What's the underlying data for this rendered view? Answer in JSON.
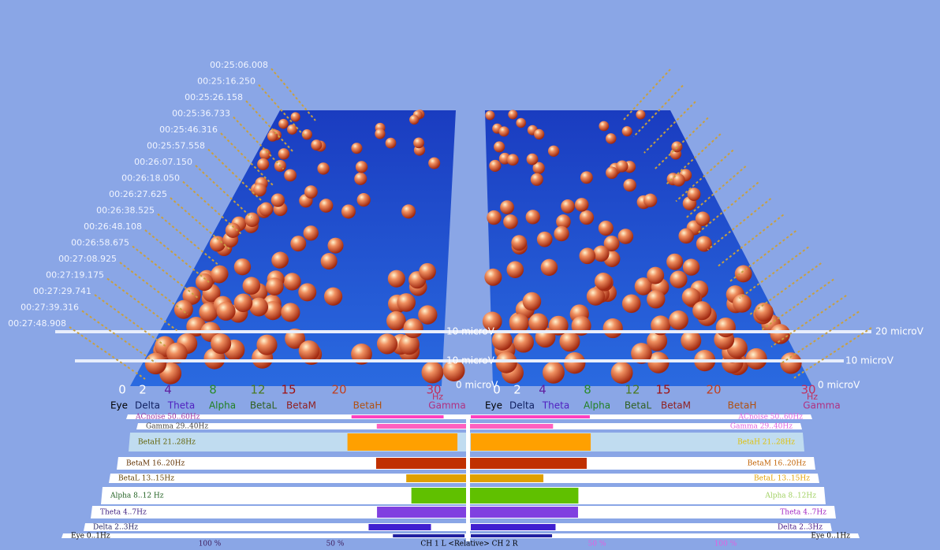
{
  "timestamps": [
    "00:25:06.008",
    "00:25:16.250",
    "00:25:26.158",
    "00:25:36.733",
    "00:25:46.316",
    "00:25:57.558",
    "00:26:07.150",
    "00:26:18.050",
    "00:26:27.625",
    "00:26:38.525",
    "00:26:48.108",
    "00:26:58.675",
    "00:27:08.925",
    "00:27:19.175",
    "00:27:29.741",
    "00:27:39.316",
    "00:27:48.908"
  ],
  "left_panel": {
    "frequencies": [
      "0",
      "2",
      "4",
      "8",
      "12",
      "15",
      "20",
      "30"
    ],
    "unit": "Hz",
    "bands": [
      "Eye",
      "Delta",
      "Theta",
      "Alpha",
      "BetaL",
      "BetaM",
      "BetaH",
      "Gamma"
    ],
    "amplitudes": [
      "10 microV",
      "10 microV",
      "0 microV"
    ]
  },
  "right_panel": {
    "frequencies": [
      "0",
      "2",
      "4",
      "8",
      "12",
      "15",
      "20",
      "30"
    ],
    "unit": "Hz",
    "bands": [
      "Eye",
      "Delta",
      "Theta",
      "Alpha",
      "BetaL",
      "BetaM",
      "BetaH",
      "Gamma"
    ],
    "amplitudes": [
      "20 microV",
      "10 microV",
      "0 microV"
    ]
  },
  "relative_panel": {
    "left_rows": [
      "ACnoise 50..60Hz",
      "Gamma 29..40Hz",
      "BetaH 21..28Hz",
      "BetaM 16..20Hz",
      "BetaL 13..15Hz",
      "Alpha 8..12 Hz",
      "Theta 4..7Hz",
      "Delta 2..3Hz",
      "Eye 0..1Hz"
    ],
    "right_rows": [
      "ACnoise 50..60Hz",
      "Gamma 29..40Hz",
      "BetaH 21..28Hz",
      "BetaM 16..20Hz",
      "BetaL 13..15Hz",
      "Alpha 8..12Hz",
      "Theta 4..7Hz",
      "Delta 2..3Hz",
      "Eye 0..1Hz"
    ],
    "scale": [
      "100 %",
      "50 %",
      "CH 1 L <Relative> CH 2 R",
      "50 %",
      "100 %"
    ]
  }
}
